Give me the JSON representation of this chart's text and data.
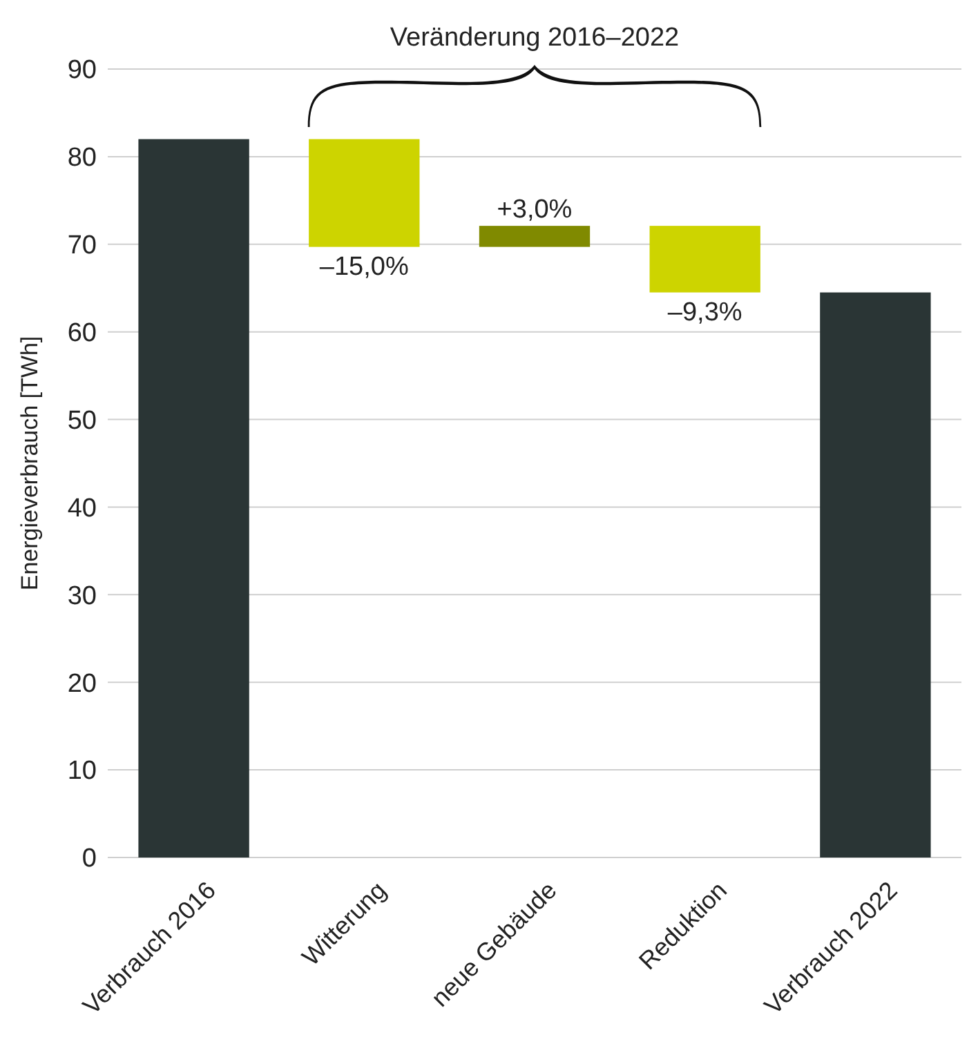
{
  "chart_data": {
    "type": "bar",
    "ylabel": "Energieverbrauch [TWh]",
    "categories": [
      "Verbrauch 2016",
      "Witterung",
      "neue Gebäude",
      "Reduktion",
      "Verbrauch 2022"
    ],
    "values": [
      82,
      -12.3,
      2.4,
      -7.6,
      64.5
    ],
    "base": [
      0,
      82,
      69.7,
      72.1,
      0
    ],
    "colors": [
      "#2a3535",
      "#cdd400",
      "#808a00",
      "#cdd400",
      "#2a3535"
    ],
    "annotations": [
      "Veränderung 2016–2022",
      {
        "text": "–15,0%",
        "x": "Witterung",
        "y": 69.7
      },
      {
        "text": "+3,0%",
        "x": "neue Gebäude",
        "y": 72.1
      },
      {
        "text": "–9,3%",
        "x": "Reduktion",
        "y": 64.5
      }
    ],
    "ylim": [
      0,
      90
    ],
    "yticks": [
      0,
      10,
      20,
      30,
      40,
      50,
      60,
      70,
      80,
      90
    ],
    "grid": "y"
  }
}
